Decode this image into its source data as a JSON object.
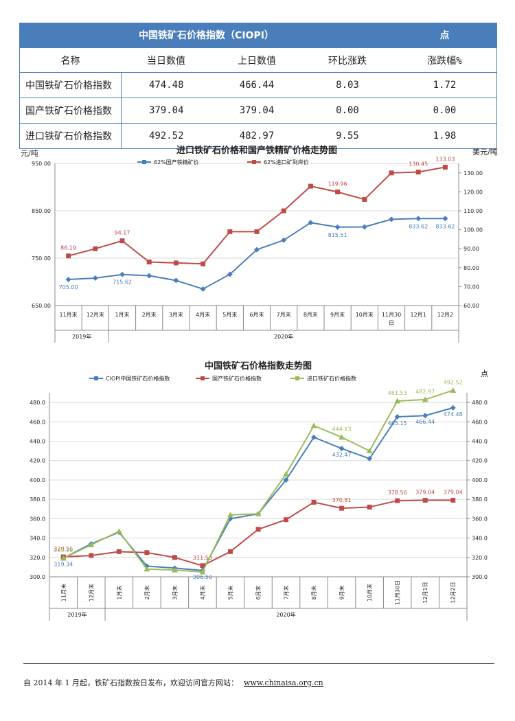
{
  "table": {
    "title": "中国铁矿石价格指数（CIOPI）",
    "unit": "点",
    "columns": [
      "名称",
      "当日数值",
      "上日数值",
      "环比涨跌",
      "涨跌幅%"
    ],
    "rows": [
      [
        "中国铁矿石价格指数",
        "474.48",
        "466.44",
        "8.03",
        "1.72"
      ],
      [
        "国产铁矿石价格指数",
        "379.04",
        "379.04",
        "0.00",
        "0.00"
      ],
      [
        "进口铁矿石价格指数",
        "492.52",
        "482.97",
        "9.55",
        "1.98"
      ]
    ]
  },
  "chart_data": [
    {
      "type": "line",
      "title": "进口铁矿石价格和国产铁精矿价格走势图",
      "ylabel": "元/吨",
      "ylabel_right": "美元/吨",
      "ylim": [
        650,
        950
      ],
      "yticks": [
        "650.00",
        "750.00",
        "850.00",
        "950.00"
      ],
      "ylim_right": [
        60,
        135
      ],
      "yticks_right": [
        "60.00",
        "70.00",
        "80.00",
        "90.00",
        "100.00",
        "110.00",
        "120.00",
        "130.00"
      ],
      "categories": [
        "11月末",
        "12月末",
        "1月末",
        "2月末",
        "3月末",
        "4月末",
        "5月末",
        "6月末",
        "7月末",
        "8月末",
        "9月末",
        "10月末",
        "11月30日",
        "12月1日",
        "12月2日"
      ],
      "year_groups": [
        {
          "label": "2019年",
          "span": 2
        },
        {
          "label": "2020年",
          "span": 13
        }
      ],
      "legend_placement": "top",
      "series": [
        {
          "name": "62%国产铁精矿价",
          "axis": "left",
          "color": "#4a7ebb",
          "values": [
            705.0,
            708,
            715.62,
            713,
            703,
            685,
            716,
            768,
            788,
            825,
            815.51,
            816,
            832,
            833.62,
            833.62
          ],
          "labels": {
            "0": "705.00",
            "2": "715.62",
            "10": "815.51",
            "13": "833.62",
            "14": "833.62"
          }
        },
        {
          "name": "62%进口矿到岸价",
          "axis": "right",
          "color": "#be4b48",
          "values": [
            86.19,
            90,
            94.17,
            83,
            82.5,
            82,
            99,
            99,
            110,
            123,
            119.96,
            116,
            130,
            130.45,
            133.03
          ],
          "labels": {
            "0": "86.19",
            "2": "94.17",
            "10": "119.96",
            "13": "130.45",
            "14": "133.03"
          }
        }
      ]
    },
    {
      "type": "line",
      "title": "中国铁矿石价格指数走势图",
      "ylabel_right": "点",
      "ylim": [
        300,
        490
      ],
      "yticks": [
        "300.0",
        "320.0",
        "340.0",
        "360.0",
        "380.0",
        "400.0",
        "420.0",
        "440.0",
        "460.0",
        "480.0"
      ],
      "categories": [
        "11月末",
        "12月末",
        "1月末",
        "2月末",
        "3月末",
        "4月末",
        "5月末",
        "6月末",
        "7月末",
        "8月末",
        "9月末",
        "10月末",
        "11月30日",
        "12月1日",
        "12月2日"
      ],
      "year_groups": [
        {
          "label": "2019年",
          "span": 2
        },
        {
          "label": "2020年",
          "span": 13
        }
      ],
      "legend_placement": "top",
      "series": [
        {
          "name": "CIOPI中国铁矿石价格指数",
          "color": "#4a7ebb",
          "values": [
            319.34,
            334,
            346,
            311,
            309,
            306.5,
            360,
            365,
            400,
            444,
            432.47,
            422,
            465.15,
            466.44,
            474.48
          ],
          "labels": {
            "0": "319.34",
            "5": "306.50",
            "10": "432.47",
            "12": "465.15",
            "13": "466.44",
            "14": "474.48"
          }
        },
        {
          "name": "国产铁矿石价格指数",
          "color": "#be4b48",
          "values": [
            320.56,
            322,
            326,
            325,
            320,
            311.5,
            326,
            349,
            359,
            377,
            370.81,
            372,
            378.56,
            379.04,
            379.04
          ],
          "labels": {
            "0": "320.56",
            "5": "311.50",
            "10": "370.81",
            "12": "378.56",
            "13": "379.04",
            "14": "379.04"
          }
        },
        {
          "name": "进口铁矿石价格指数",
          "color": "#9bbb59",
          "values": [
            319.1,
            333,
            347,
            308,
            307,
            305,
            364,
            365,
            406,
            456,
            444.13,
            430,
            481.53,
            482.97,
            492.52
          ],
          "labels": {
            "0": "319.10",
            "10": "444.13",
            "12": "481.53",
            "13": "482.97",
            "14": "492.52"
          }
        }
      ]
    }
  ],
  "footer": {
    "text": "自 2014 年 1 月起，铁矿石指数按日发布，欢迎访问官方网站：",
    "url": "www.chinaisa.org.cn"
  }
}
